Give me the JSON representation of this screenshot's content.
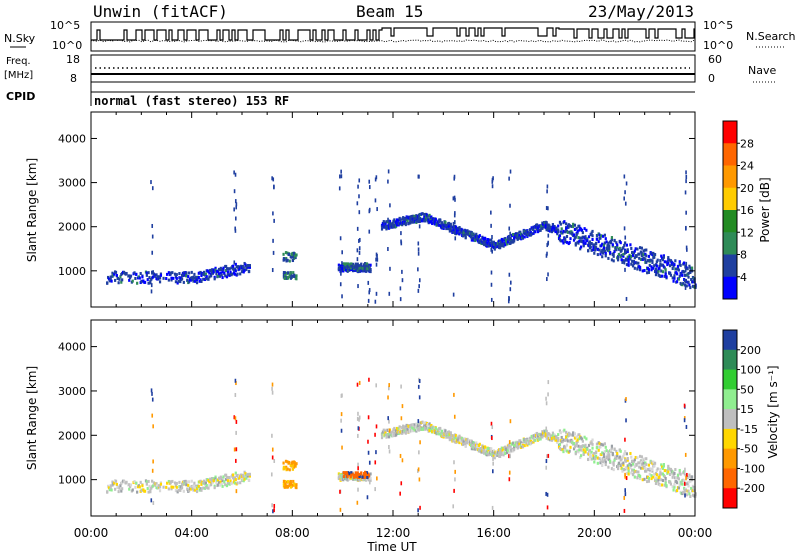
{
  "header": {
    "station": "Unwin (fitACF)",
    "beam": "Beam 15",
    "date": "23/May/2013"
  },
  "top_panels": {
    "nsky_label": "N.Sky",
    "nsky_ticks": [
      "10^5",
      "10^0"
    ],
    "nsearch_label": "N.Search",
    "nsearch_ticks": [
      "10^5",
      "10^0"
    ],
    "freq_label": "Freq.",
    "freq_unit": "[MHz]",
    "freq_ticks": [
      "18",
      "8"
    ],
    "nave_label": "Nave",
    "nave_ticks": [
      "60",
      "0"
    ],
    "cpid_label": "CPID",
    "cpid_text": "normal (fast stereo) 153 RF"
  },
  "chart_data": [
    {
      "type": "heatmap",
      "panel": "power",
      "ylabel": "Slant Range [km]",
      "xlabel": "",
      "ylim": [
        180,
        4600
      ],
      "xlim": [
        0,
        24
      ],
      "yticks": [
        1000,
        2000,
        3000,
        4000
      ],
      "colorbar": {
        "label": "Power [dB]",
        "ticks": [
          "28",
          "24",
          "20",
          "16",
          "12",
          "8",
          "4"
        ],
        "colors": [
          "#ff0000",
          "#ff6600",
          "#ff9900",
          "#ffcc00",
          "#228b22",
          "#2e8b57",
          "#1f3fa0",
          "#0000ff"
        ]
      },
      "features": [
        {
          "hours": [
            0.6,
            6.2
          ],
          "range_km": [
            800,
            1300
          ],
          "power_db": 4
        },
        {
          "hours": [
            7.5,
            8.2
          ],
          "range_km": [
            800,
            1400
          ],
          "power_db": 10
        },
        {
          "hours": [
            10.0,
            11.0
          ],
          "range_km": [
            1050,
            1200
          ],
          "power_db": 6
        },
        {
          "hours": [
            11.5,
            24.0
          ],
          "range_km": [
            800,
            2350
          ],
          "power_db": 4
        }
      ]
    },
    {
      "type": "heatmap",
      "panel": "velocity",
      "ylabel": "Slant Range [km]",
      "xlabel": "Time UT",
      "ylim": [
        180,
        4600
      ],
      "xlim": [
        0,
        24
      ],
      "yticks": [
        1000,
        2000,
        3000,
        4000
      ],
      "xticks": [
        "00:00",
        "04:00",
        "08:00",
        "12:00",
        "16:00",
        "20:00",
        "00:00"
      ],
      "colorbar": {
        "label": "Velocity [m s⁻¹]",
        "ticks": [
          "200",
          "100",
          "50",
          "15",
          "-15",
          "-50",
          "-100",
          "-200"
        ],
        "colors": [
          "#1f3fa0",
          "#2e8b57",
          "#32cd32",
          "#90ee90",
          "#bfbfbf",
          "#ffd700",
          "#ff9900",
          "#ff6600",
          "#ff0000"
        ]
      },
      "features": [
        {
          "hours": [
            0.6,
            6.2
          ],
          "range_km": [
            800,
            1300
          ],
          "velocity": 0
        },
        {
          "hours": [
            7.5,
            8.2
          ],
          "range_km": [
            800,
            1400
          ],
          "velocity": -80
        },
        {
          "hours": [
            10.0,
            11.0
          ],
          "range_km": [
            1050,
            1200
          ],
          "velocity": -80
        },
        {
          "hours": [
            11.5,
            24.0
          ],
          "range_km": [
            800,
            2350
          ],
          "velocity": 0
        }
      ]
    }
  ]
}
